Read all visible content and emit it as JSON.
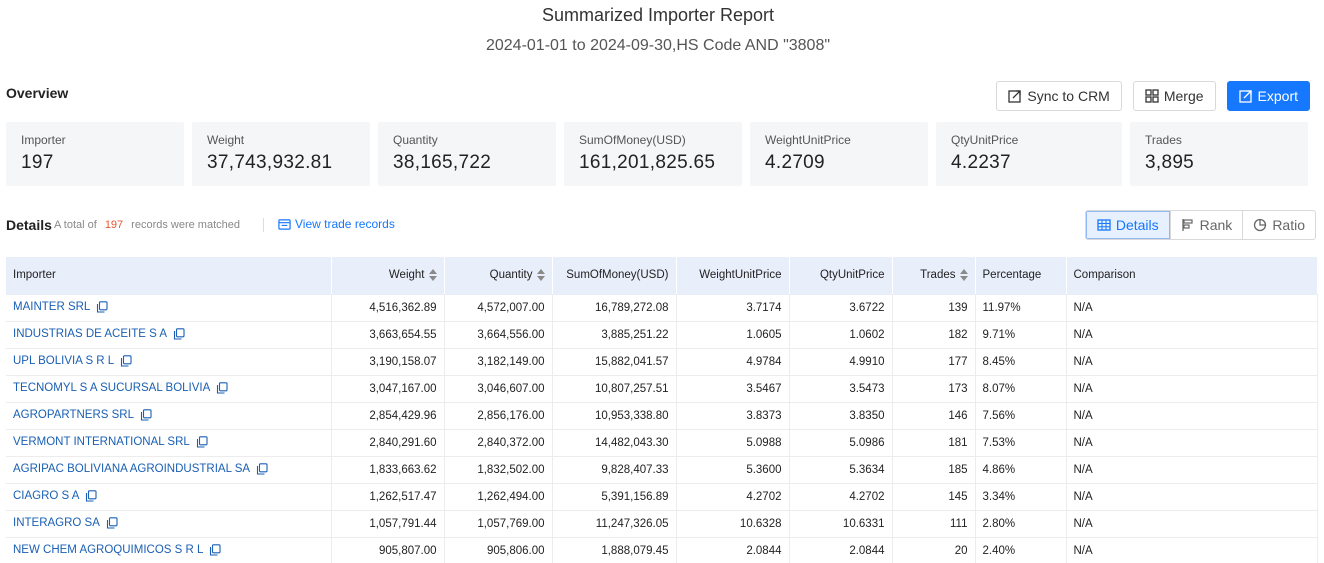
{
  "header": {
    "title": "Summarized Importer Report",
    "subtitle": "2024-01-01 to 2024-09-30,HS Code AND \"3808\""
  },
  "overview": {
    "title": "Overview",
    "buttons": {
      "sync": "Sync to CRM",
      "merge": "Merge",
      "export": "Export"
    },
    "stats": [
      {
        "label": "Importer",
        "value": "197"
      },
      {
        "label": "Weight",
        "value": "37,743,932.81"
      },
      {
        "label": "Quantity",
        "value": "38,165,722"
      },
      {
        "label": "SumOfMoney(USD)",
        "value": "161,201,825.65"
      },
      {
        "label": "WeightUnitPrice",
        "value": "4.2709"
      },
      {
        "label": "QtyUnitPrice",
        "value": "4.2237"
      },
      {
        "label": "Trades",
        "value": "3,895"
      }
    ]
  },
  "details": {
    "title": "Details",
    "prefix": "A total of",
    "count": "197",
    "suffix": "records were matched",
    "view_link": "View trade records",
    "views": {
      "details": "Details",
      "rank": "Rank",
      "ratio": "Ratio"
    }
  },
  "table": {
    "columns": [
      "Importer",
      "Weight",
      "Quantity",
      "SumOfMoney(USD)",
      "WeightUnitPrice",
      "QtyUnitPrice",
      "Trades",
      "Percentage",
      "Comparison"
    ],
    "rows": [
      [
        "MAINTER SRL",
        "4,516,362.89",
        "4,572,007.00",
        "16,789,272.08",
        "3.7174",
        "3.6722",
        "139",
        "11.97%",
        "N/A"
      ],
      [
        "INDUSTRIAS DE ACEITE S A",
        "3,663,654.55",
        "3,664,556.00",
        "3,885,251.22",
        "1.0605",
        "1.0602",
        "182",
        "9.71%",
        "N/A"
      ],
      [
        "UPL BOLIVIA S R L",
        "3,190,158.07",
        "3,182,149.00",
        "15,882,041.57",
        "4.9784",
        "4.9910",
        "177",
        "8.45%",
        "N/A"
      ],
      [
        "TECNOMYL S A SUCURSAL BOLIVIA",
        "3,047,167.00",
        "3,046,607.00",
        "10,807,257.51",
        "3.5467",
        "3.5473",
        "173",
        "8.07%",
        "N/A"
      ],
      [
        "AGROPARTNERS SRL",
        "2,854,429.96",
        "2,856,176.00",
        "10,953,338.80",
        "3.8373",
        "3.8350",
        "146",
        "7.56%",
        "N/A"
      ],
      [
        "VERMONT INTERNATIONAL SRL",
        "2,840,291.60",
        "2,840,372.00",
        "14,482,043.30",
        "5.0988",
        "5.0986",
        "181",
        "7.53%",
        "N/A"
      ],
      [
        "AGRIPAC BOLIVIANA AGROINDUSTRIAL SA",
        "1,833,663.62",
        "1,832,502.00",
        "9,828,407.33",
        "5.3600",
        "5.3634",
        "185",
        "4.86%",
        "N/A"
      ],
      [
        "CIAGRO S A",
        "1,262,517.47",
        "1,262,494.00",
        "5,391,156.89",
        "4.2702",
        "4.2702",
        "145",
        "3.34%",
        "N/A"
      ],
      [
        "INTERAGRO SA",
        "1,057,791.44",
        "1,057,769.00",
        "11,247,326.05",
        "10.6328",
        "10.6331",
        "111",
        "2.80%",
        "N/A"
      ],
      [
        "NEW CHEM AGROQUIMICOS S R L",
        "905,807.00",
        "905,806.00",
        "1,888,079.45",
        "2.0844",
        "2.0844",
        "20",
        "2.40%",
        "N/A"
      ]
    ]
  }
}
